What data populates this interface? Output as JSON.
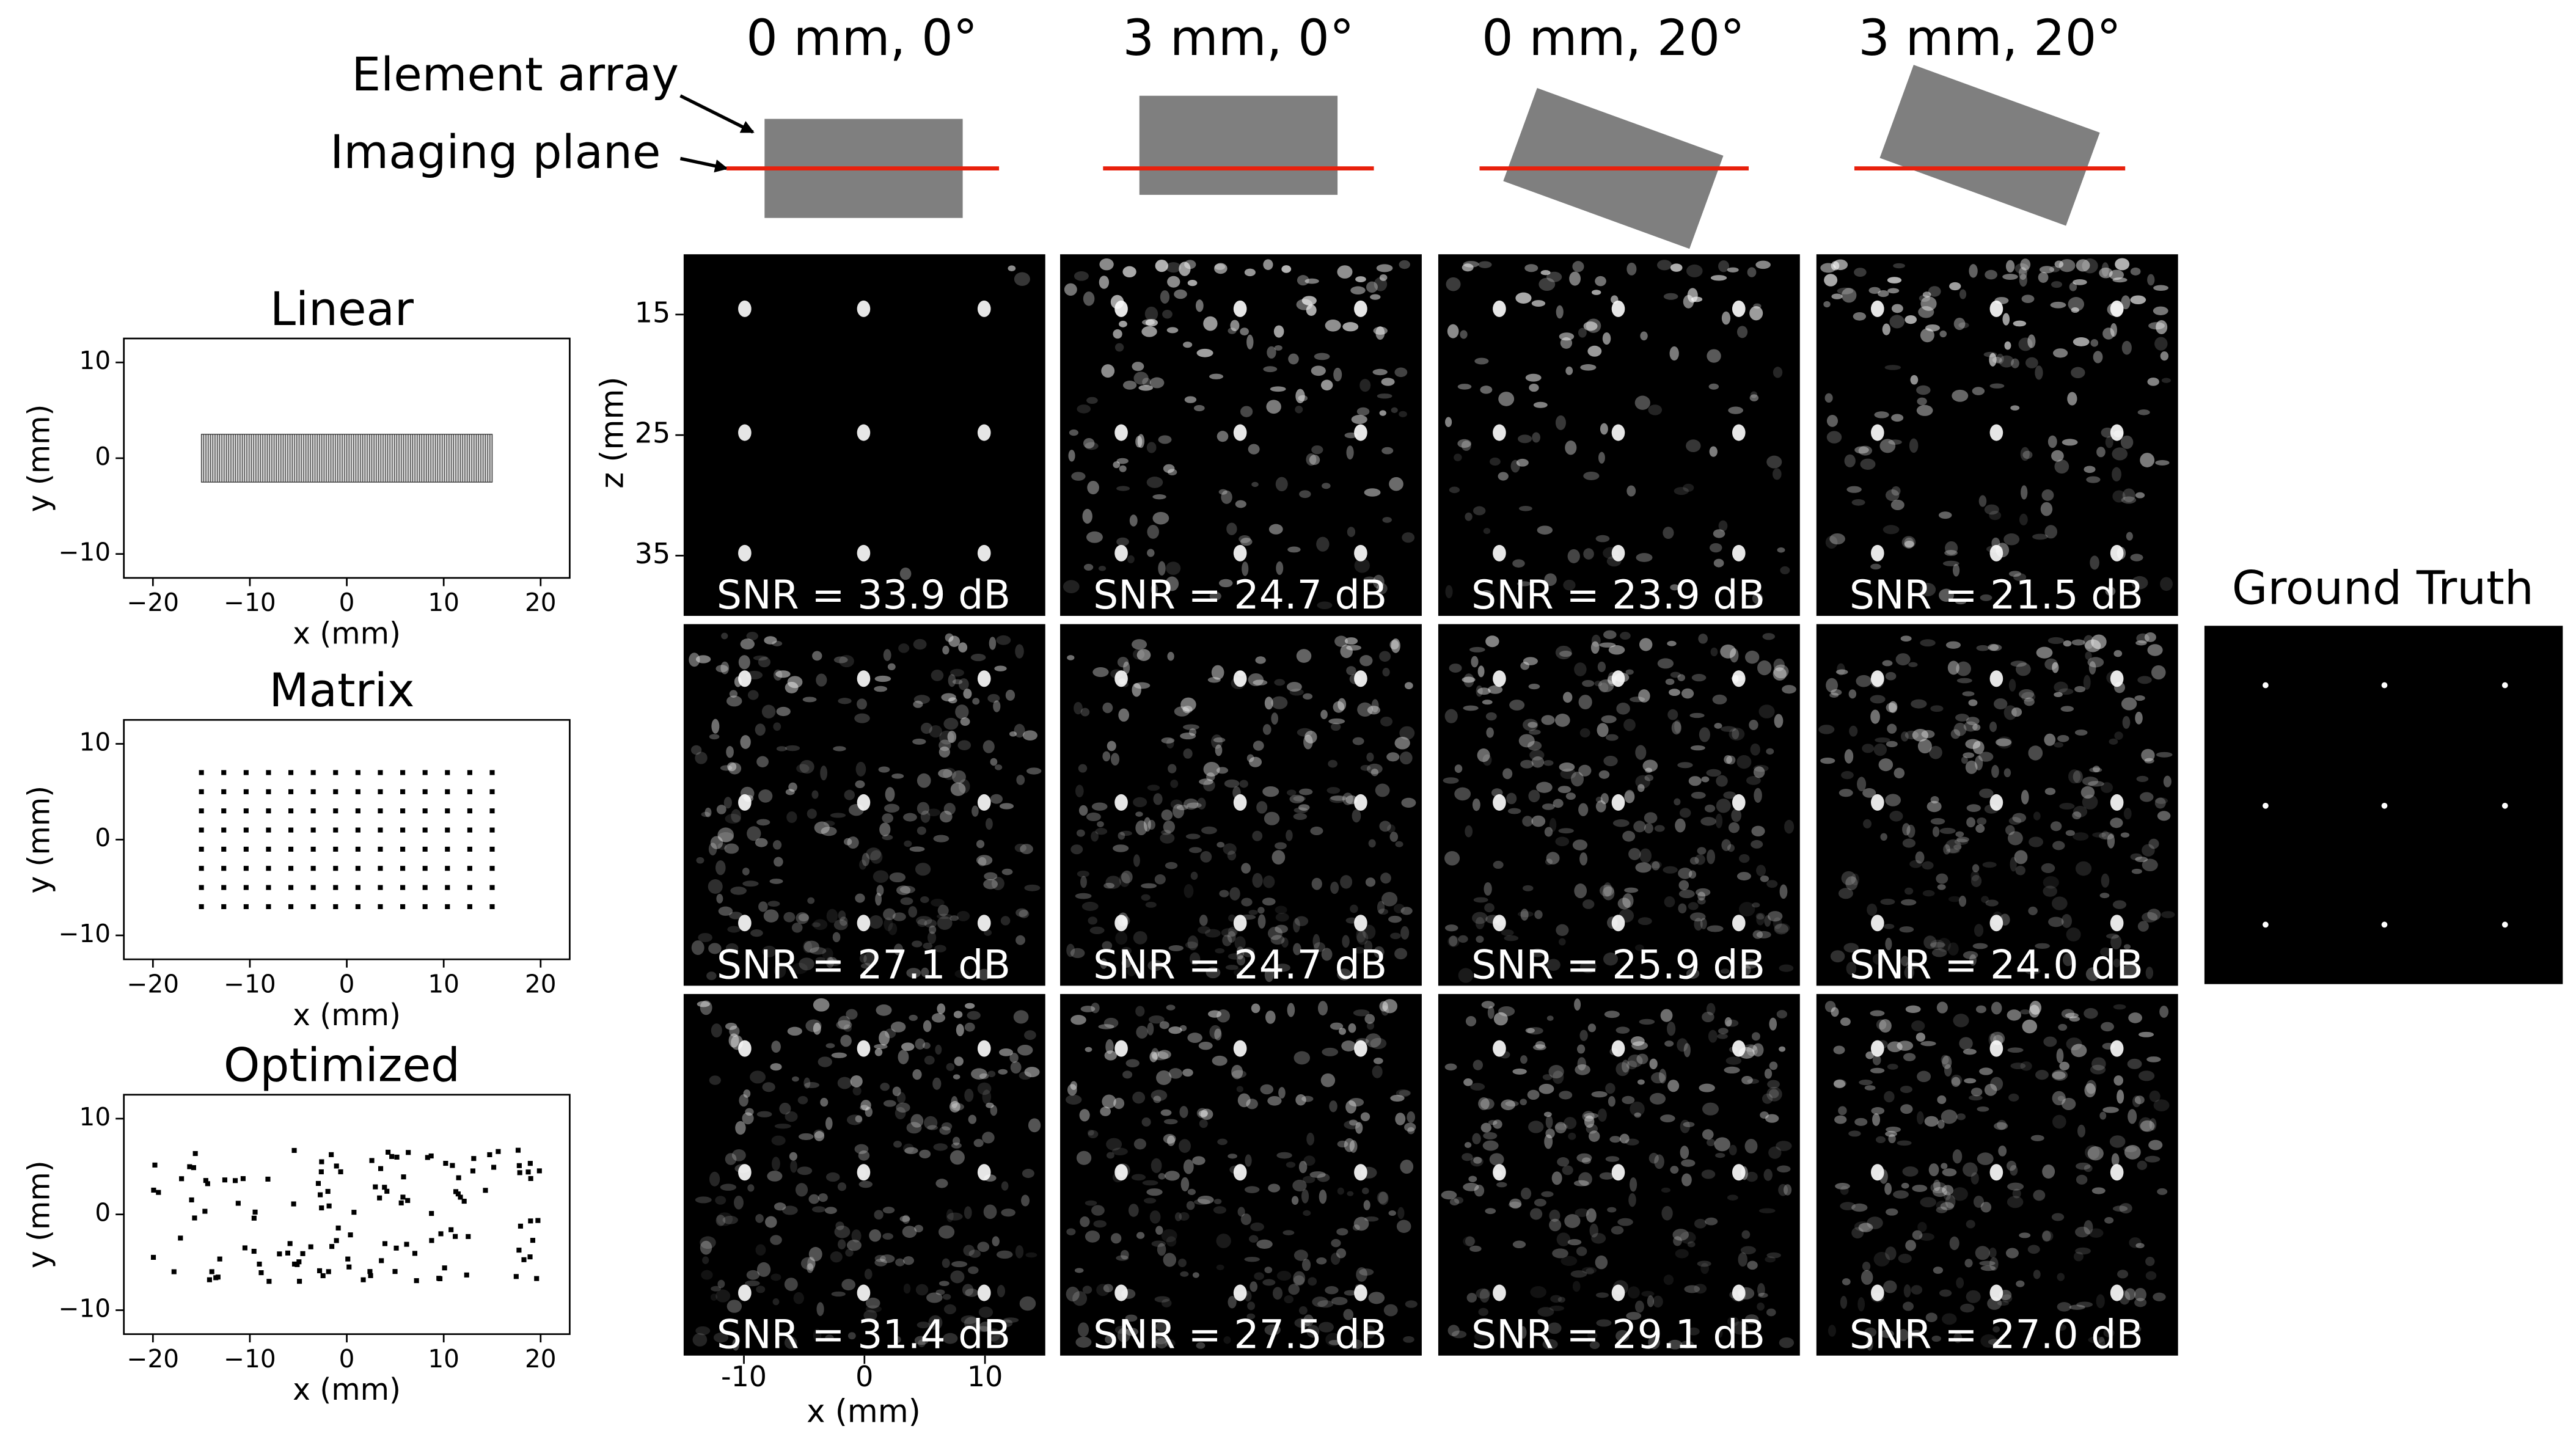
{
  "diagram": {
    "columns": [
      "0 mm, 0°",
      "3 mm, 0°",
      "0 mm, 20°",
      "3 mm, 20°"
    ],
    "element_array": "Element array",
    "imaging_plane": "Imaging plane"
  },
  "array_plots": {
    "titles": [
      "Linear",
      "Matrix",
      "Optimized"
    ],
    "xlabel": "x (mm)",
    "ylabel": "y (mm)",
    "xlim": [
      -23,
      23
    ],
    "ylim": [
      -12.5,
      12.5
    ],
    "xticks": [
      {
        "value": -20,
        "label": "−20"
      },
      {
        "value": -10,
        "label": "−10"
      },
      0,
      10,
      20
    ],
    "yticks": [
      {
        "value": -10,
        "label": "−10"
      },
      0,
      10
    ]
  },
  "images": {
    "zlabel": "z (mm)",
    "zlim": [
      10,
      40
    ],
    "zticks": [
      15,
      25,
      35
    ],
    "xlabel": "x (mm)",
    "xlim": [
      -15,
      15
    ],
    "xticks": [
      -10,
      0,
      10
    ]
  },
  "snr": [
    [
      "SNR = 33.9 dB",
      "SNR = 24.7 dB",
      "SNR = 23.9 dB",
      "SNR = 21.5 dB"
    ],
    [
      "SNR = 27.1 dB",
      "SNR = 24.7 dB",
      "SNR = 25.9 dB",
      "SNR = 24.0 dB"
    ],
    [
      "SNR = 31.4 dB",
      "SNR = 27.5 dB",
      "SNR = 29.1 dB",
      "SNR = 27.0 dB"
    ]
  ],
  "ground_truth": {
    "title": "Ground Truth"
  }
}
